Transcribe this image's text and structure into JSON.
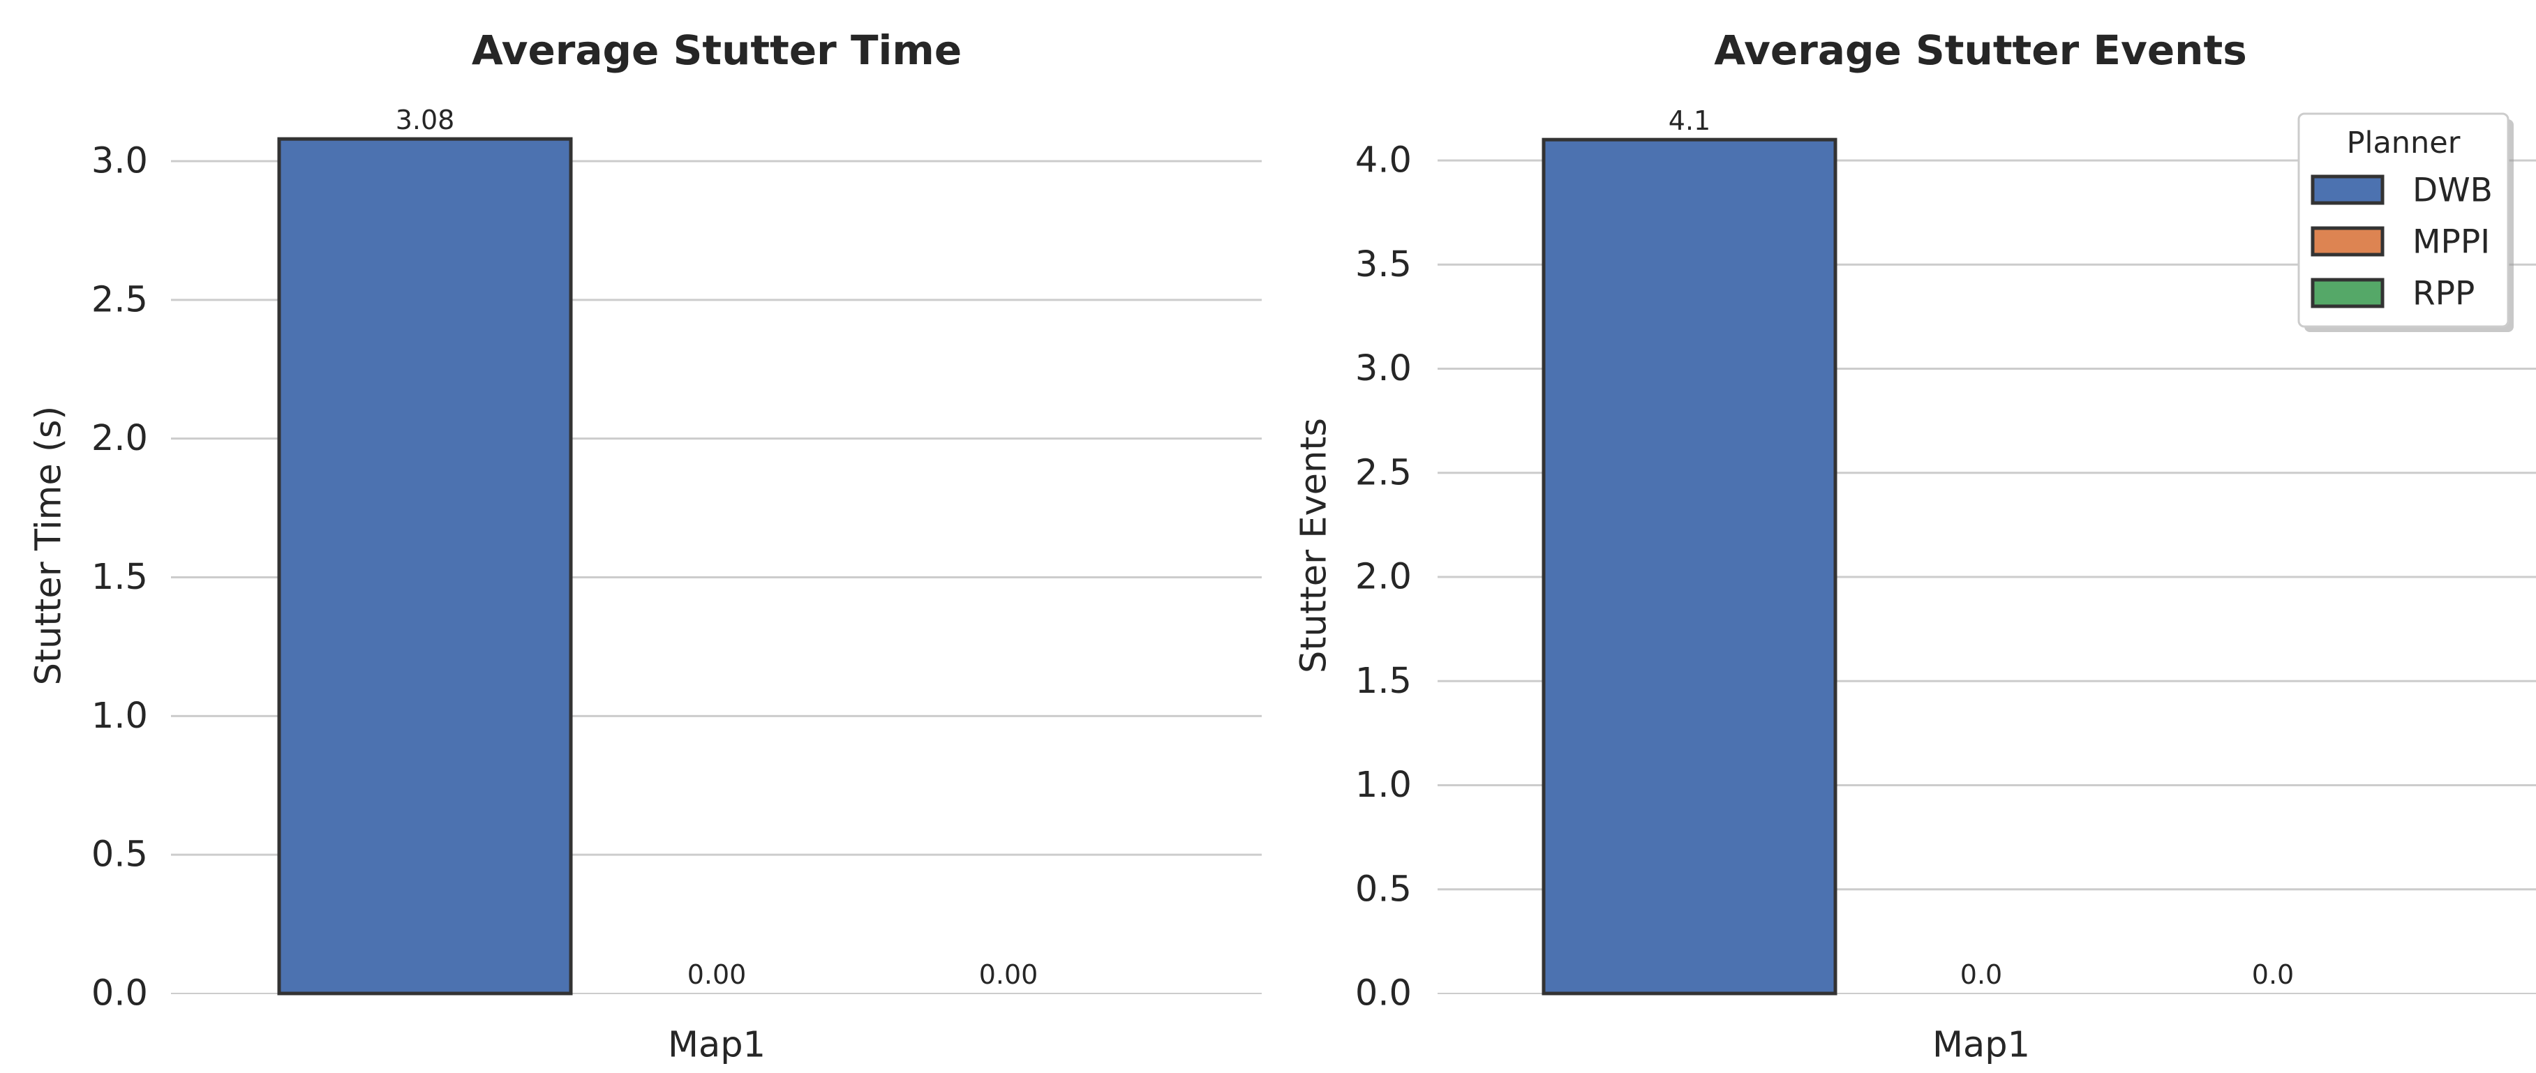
{
  "chart_data": [
    {
      "type": "bar",
      "title": "Average Stutter Time",
      "xlabel": "",
      "ylabel": "Stutter Time (s)",
      "categories": [
        "Map1"
      ],
      "ylim": [
        0,
        3.1
      ],
      "yticks": [
        "0.0",
        "0.5",
        "1.0",
        "1.5",
        "2.0",
        "2.5",
        "3.0"
      ],
      "grid": "horizontal",
      "series": [
        {
          "name": "DWB",
          "values": [
            3.08
          ],
          "labels": [
            "3.08"
          ]
        },
        {
          "name": "MPPI",
          "values": [
            0.0
          ],
          "labels": [
            "0.00"
          ]
        },
        {
          "name": "RPP",
          "values": [
            0.0
          ],
          "labels": [
            "0.00"
          ]
        }
      ]
    },
    {
      "type": "bar",
      "title": "Average Stutter Events",
      "xlabel": "",
      "ylabel": "Stutter Events",
      "categories": [
        "Map1"
      ],
      "ylim": [
        0,
        4.12
      ],
      "yticks": [
        "0.0",
        "0.5",
        "1.0",
        "1.5",
        "2.0",
        "2.5",
        "3.0",
        "3.5",
        "4.0"
      ],
      "grid": "horizontal",
      "legend": {
        "title": "Planner",
        "placement": "top-right"
      },
      "series": [
        {
          "name": "DWB",
          "values": [
            4.1
          ],
          "labels": [
            "4.1"
          ]
        },
        {
          "name": "MPPI",
          "values": [
            0.0
          ],
          "labels": [
            "0.0"
          ]
        },
        {
          "name": "RPP",
          "values": [
            0.0
          ],
          "labels": [
            "0.0"
          ]
        }
      ]
    }
  ],
  "colors": {
    "DWB": "#4c72b0",
    "MPPI": "#dd8452",
    "RPP": "#55a868",
    "edge": "#333333",
    "grid": "#cccccc",
    "text": "#262626"
  }
}
